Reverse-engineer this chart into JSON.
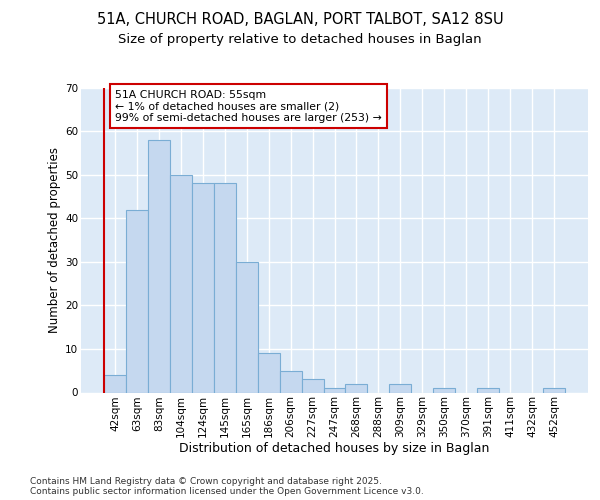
{
  "title_line1": "51A, CHURCH ROAD, BAGLAN, PORT TALBOT, SA12 8SU",
  "title_line2": "Size of property relative to detached houses in Baglan",
  "xlabel": "Distribution of detached houses by size in Baglan",
  "ylabel": "Number of detached properties",
  "categories": [
    "42sqm",
    "63sqm",
    "83sqm",
    "104sqm",
    "124sqm",
    "145sqm",
    "165sqm",
    "186sqm",
    "206sqm",
    "227sqm",
    "247sqm",
    "268sqm",
    "288sqm",
    "309sqm",
    "329sqm",
    "350sqm",
    "370sqm",
    "391sqm",
    "411sqm",
    "432sqm",
    "452sqm"
  ],
  "values": [
    4,
    42,
    58,
    50,
    48,
    48,
    30,
    9,
    5,
    3,
    1,
    2,
    0,
    2,
    0,
    1,
    0,
    1,
    0,
    0,
    1
  ],
  "bar_color": "#c5d8ef",
  "bar_edge_color": "#7aadd4",
  "vline_color": "#cc0000",
  "vline_x": -0.5,
  "annotation_text": "51A CHURCH ROAD: 55sqm\n← 1% of detached houses are smaller (2)\n99% of semi-detached houses are larger (253) →",
  "annotation_box_facecolor": "#ffffff",
  "annotation_box_edgecolor": "#cc0000",
  "ylim": [
    0,
    70
  ],
  "yticks": [
    0,
    10,
    20,
    30,
    40,
    50,
    60,
    70
  ],
  "plot_bg_color": "#ddeaf7",
  "fig_bg_color": "#ffffff",
  "footer_text": "Contains HM Land Registry data © Crown copyright and database right 2025.\nContains public sector information licensed under the Open Government Licence v3.0.",
  "title_fontsize": 10.5,
  "subtitle_fontsize": 9.5,
  "annot_fontsize": 7.8,
  "tick_fontsize": 7.5,
  "xlabel_fontsize": 9,
  "ylabel_fontsize": 8.5,
  "footer_fontsize": 6.5
}
